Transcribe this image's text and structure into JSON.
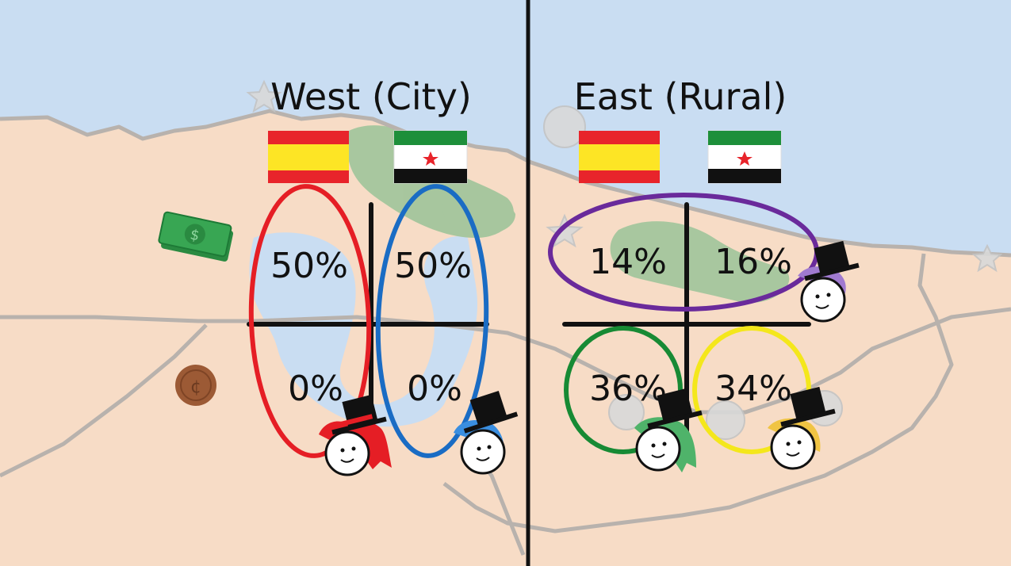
{
  "panels": [
    {
      "id": "west",
      "title": "West (City)",
      "cells": {
        "top_left": "50%",
        "top_right": "50%",
        "bottom_left": "0%",
        "bottom_right": "0%"
      },
      "circles": [
        "red",
        "blue"
      ]
    },
    {
      "id": "east",
      "title": "East (Rural)",
      "cells": {
        "top_left": "14%",
        "top_right": "16%",
        "bottom_left": "36%",
        "bottom_right": "34%"
      },
      "circles": [
        "purple",
        "green",
        "yellow"
      ]
    }
  ],
  "colors": {
    "sea": "#c9ddf2",
    "land": "#f7dcc6",
    "forest": "#9fc49a",
    "border": "#b8b2ad",
    "flag_red": "#e8242b",
    "flag_yellow": "#fde525",
    "flag_green": "#1d8f3a",
    "circle_red": "#e51e25",
    "circle_blue": "#1a6cc4",
    "circle_purple": "#6a2a9b",
    "circle_green": "#178a34",
    "circle_yellow": "#f4e71b",
    "money_green": "#2f9a4a",
    "coin_brown": "#9c5a35"
  },
  "icons": [
    "money-stack-icon",
    "coin-icon",
    "flag-spain-icon",
    "flag-republic-icon",
    "star-icon",
    "top-hat-character-icon"
  ]
}
